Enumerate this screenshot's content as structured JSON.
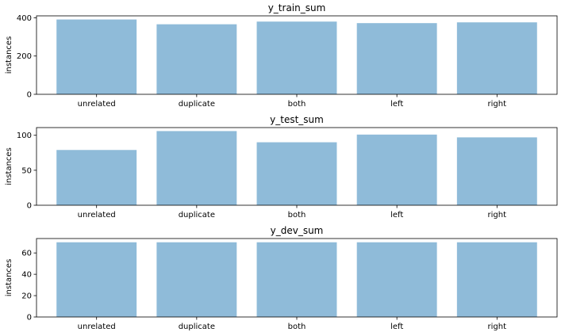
{
  "chart_data": [
    {
      "type": "bar",
      "title": "y_train_sum",
      "ylabel": "instances",
      "categories": [
        "unrelated",
        "duplicate",
        "both",
        "left",
        "right"
      ],
      "values": [
        391,
        366,
        380,
        372,
        376
      ],
      "ylim": [
        0,
        410
      ],
      "yticks": [
        0,
        200,
        400
      ],
      "grid": false
    },
    {
      "type": "bar",
      "title": "y_test_sum",
      "ylabel": "instances",
      "categories": [
        "unrelated",
        "duplicate",
        "both",
        "left",
        "right"
      ],
      "values": [
        79,
        106,
        90,
        101,
        97
      ],
      "ylim": [
        0,
        111
      ],
      "yticks": [
        0,
        50,
        100
      ],
      "grid": false
    },
    {
      "type": "bar",
      "title": "y_dev_sum",
      "ylabel": "instances",
      "categories": [
        "unrelated",
        "duplicate",
        "both",
        "left",
        "right"
      ],
      "values": [
        70,
        70,
        70,
        70,
        70
      ],
      "ylim": [
        0,
        73.5
      ],
      "yticks": [
        0,
        20,
        40,
        60
      ],
      "grid": false
    }
  ],
  "colors": {
    "bar": "#1f77b4"
  }
}
